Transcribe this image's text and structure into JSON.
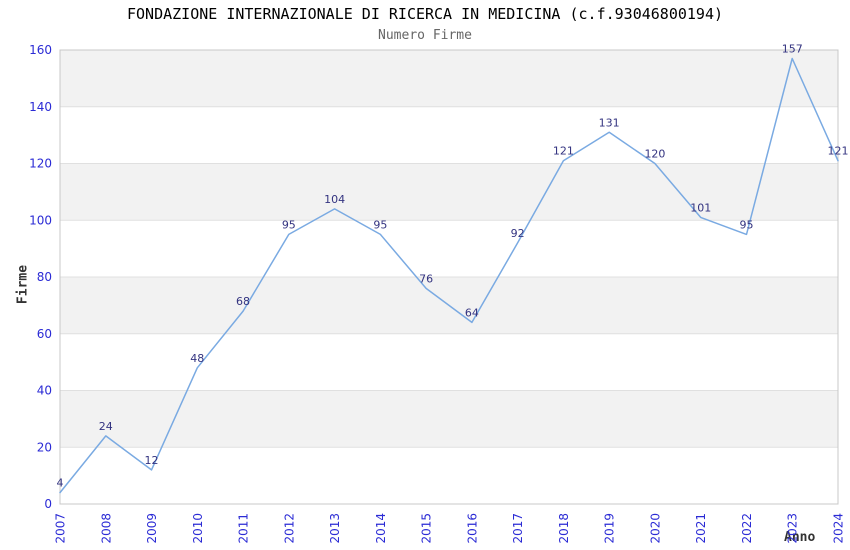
{
  "title": "FONDAZIONE INTERNAZIONALE DI RICERCA IN MEDICINA (c.f.93046800194)",
  "subtitle": "Numero Firme",
  "chart_data": {
    "type": "line",
    "title": "FONDAZIONE INTERNAZIONALE DI RICERCA IN MEDICINA (c.f.93046800194)",
    "subtitle": "Numero Firme",
    "xlabel": "Anno",
    "ylabel": "Firme",
    "categories": [
      "2007",
      "2008",
      "2009",
      "2010",
      "2011",
      "2012",
      "2013",
      "2014",
      "2015",
      "2016",
      "2017",
      "2018",
      "2019",
      "2020",
      "2021",
      "2022",
      "2023",
      "2024"
    ],
    "values": [
      4,
      24,
      12,
      48,
      68,
      95,
      104,
      95,
      76,
      64,
      92,
      121,
      131,
      120,
      101,
      95,
      157,
      121
    ],
    "ylim": [
      0,
      160
    ],
    "ytick_step": 20,
    "yticks": [
      0,
      20,
      40,
      60,
      80,
      100,
      120,
      140,
      160
    ],
    "grid": "horizontal-bands-alternating",
    "legend": "none",
    "data_labels": "shown-above-points",
    "colors": {
      "line": "#7aaae2",
      "tick_label": "#2b2bd5",
      "data_label": "#333380",
      "band": "#f2f2f2",
      "grid_line": "#e0e0e0",
      "plot_border": "#c8c8c8",
      "title": "#000000",
      "subtitle": "#666666",
      "axis_name": "#333333",
      "background": "#ffffff"
    }
  }
}
